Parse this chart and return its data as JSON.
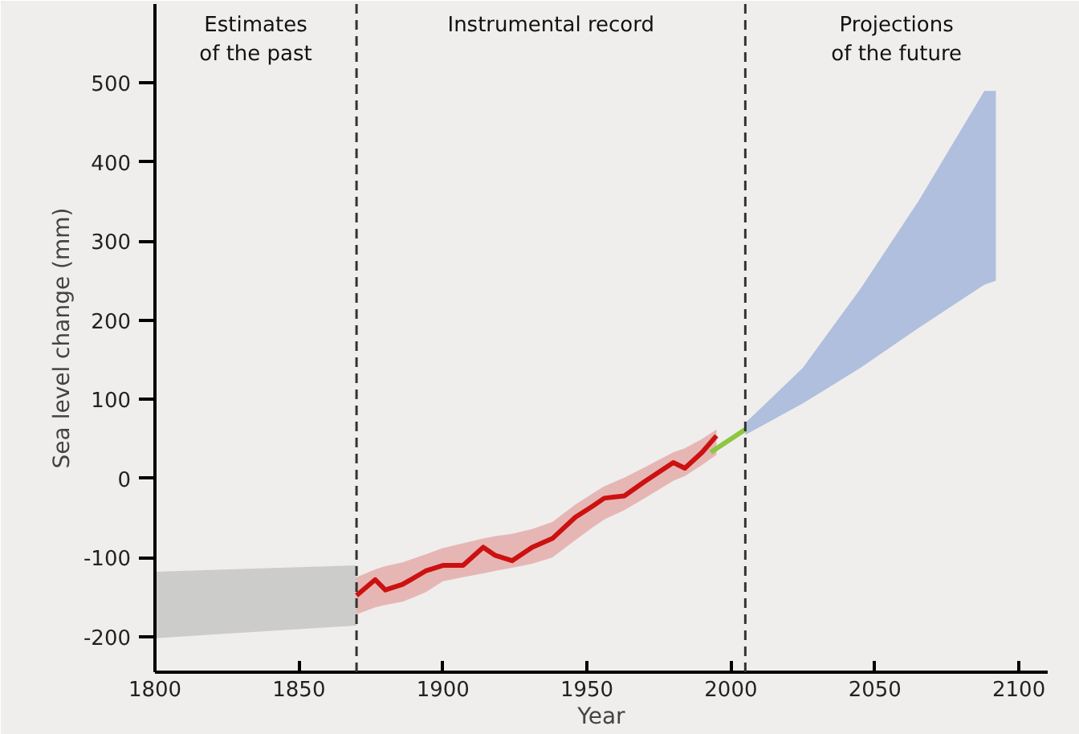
{
  "chart_data": {
    "type": "line",
    "xlabel": "Year",
    "ylabel": "Sea level change (mm)",
    "xlim": [
      1800,
      2110
    ],
    "ylim": [
      -245,
      600
    ],
    "xticks": [
      1800,
      1850,
      1900,
      1950,
      2000,
      2050,
      2100
    ],
    "yticks": [
      -200,
      -100,
      0,
      100,
      200,
      300,
      400,
      500
    ],
    "grid": false,
    "series": [
      {
        "color": "#c8c8c8",
        "x": [
          1800,
          1870
        ],
        "values": [
          null,
          null
        ],
        "lower": [
          -202,
          -186
        ],
        "upper": [
          -118,
          -110
        ]
      },
      {
        "color": "#a7b9dc",
        "x": [
          2005,
          2025,
          2045,
          2065,
          2088,
          2092
        ],
        "values": [
          null,
          null,
          null,
          null,
          null,
          null
        ],
        "lower": [
          55,
          95,
          140,
          190,
          245,
          250
        ],
        "upper": [
          70,
          140,
          240,
          350,
          490,
          490
        ]
      },
      {
        "color": "#cc1111",
        "x": [
          1870,
          1876.5,
          1880,
          1886,
          1894,
          1900,
          1907,
          1914,
          1918,
          1924,
          1931,
          1938,
          1946,
          1952,
          1956,
          1963,
          1970,
          1980,
          1984,
          1990,
          1995
        ],
        "values": [
          -148,
          -128,
          -141,
          -134,
          -117,
          -110,
          -110,
          -87,
          -97,
          -104,
          -87,
          -76,
          -49,
          -35,
          -25,
          -22,
          -4,
          20,
          13,
          33,
          54
        ],
        "lower": [
          -172,
          -163,
          -160,
          -156,
          -144,
          -130,
          -125,
          -120,
          -117,
          -113,
          -108,
          -100,
          -78,
          -62,
          -52,
          -40,
          -25,
          -3,
          3,
          17,
          30
        ],
        "upper": [
          -125,
          -115,
          -111,
          -106,
          -96,
          -88,
          -82,
          -76,
          -73,
          -70,
          -64,
          -55,
          -33,
          -19,
          -10,
          1,
          14,
          33,
          38,
          50,
          62
        ]
      },
      {
        "color": "#8dc63f",
        "x": [
          1993,
          2005
        ],
        "values": [
          33,
          62
        ]
      }
    ],
    "ref_lines": [
      {
        "axis": "x",
        "value": 1870,
        "color": "#333333",
        "line_style": "dashed"
      },
      {
        "axis": "x",
        "value": 2005,
        "color": "#333333",
        "line_style": "dashed"
      }
    ],
    "annotations": [
      "Estimates\nof the past",
      "Instrumental record",
      "Projections\nof the future"
    ]
  }
}
